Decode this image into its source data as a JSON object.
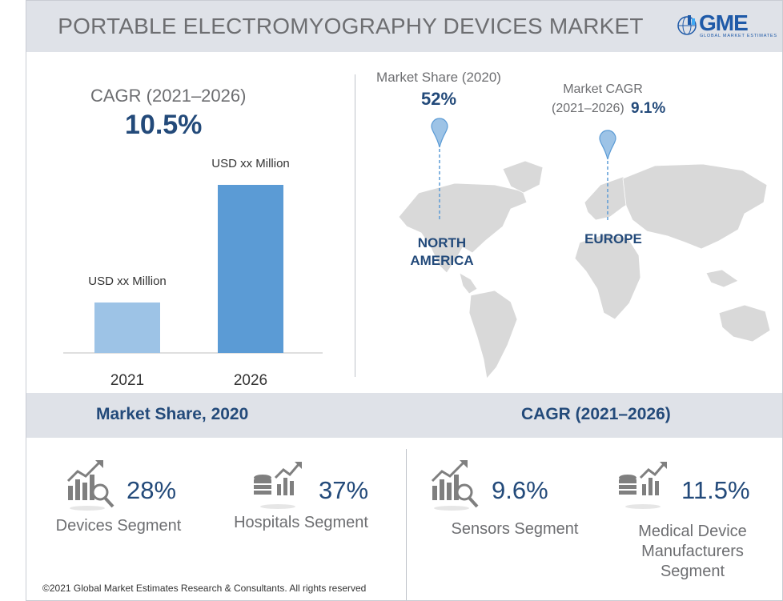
{
  "header": {
    "title": "PORTABLE ELECTROMYOGRAPHY DEVICES MARKET",
    "logo_text": "GME",
    "logo_sub": "GLOBAL MARKET ESTIMATES"
  },
  "cagr_block": {
    "label": "CAGR (2021–2026)",
    "value": "10.5%"
  },
  "chart_data": {
    "type": "bar",
    "categories": [
      "2021",
      "2026"
    ],
    "values": [
      30,
      100
    ],
    "data_labels": [
      "USD xx Million",
      "USD xx Million"
    ],
    "colors": [
      "#9dc3e6",
      "#5b9bd5"
    ],
    "title": "",
    "xlabel": "",
    "ylabel": "",
    "grid": false
  },
  "map": {
    "market_share_label": "Market Share (2020)",
    "market_share_value": "52%",
    "market_cagr_label": "Market CAGR",
    "market_cagr_period": "(2021–2026)",
    "market_cagr_value": "9.1%",
    "region_north_america": "NORTH AMERICA",
    "region_europe": "EUROPE"
  },
  "segments": {
    "left_title": "Market Share, 2020",
    "right_title": "CAGR (2021–2026)",
    "items": [
      {
        "value": "28%",
        "label": "Devices Segment",
        "icon": "chart-magnifier-icon"
      },
      {
        "value": "37%",
        "label": "Hospitals Segment",
        "icon": "database-chart-icon"
      },
      {
        "value": "9.6%",
        "label": "Sensors Segment",
        "icon": "chart-magnifier-icon"
      },
      {
        "value": "11.5%",
        "label": "Medical Device Manufacturers Segment",
        "icon": "database-chart-icon"
      }
    ]
  },
  "footer": {
    "copyright": "©2021 Global Market Estimates Research & Consultants. All rights reserved"
  }
}
